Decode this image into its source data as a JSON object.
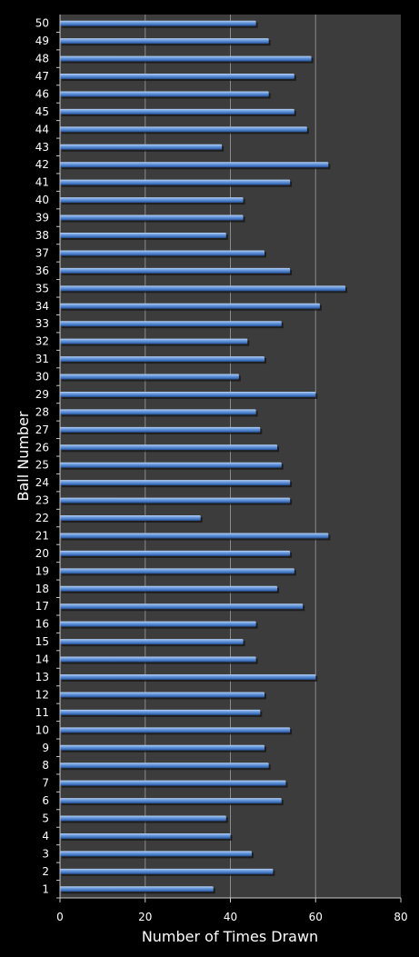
{
  "chart_data": {
    "type": "bar",
    "orientation": "horizontal",
    "xlabel": "Number of Times Drawn",
    "ylabel": "Ball Number",
    "xlim": [
      0,
      80
    ],
    "x_ticks": [
      0,
      20,
      40,
      60,
      80
    ],
    "grid": true,
    "colors": {
      "background": "#000000",
      "plot_area": "#3c3c3c",
      "bar": "#4f81c8",
      "gridline": "#8a8a8a",
      "text": "#ffffff"
    },
    "categories": [
      "1",
      "2",
      "3",
      "4",
      "5",
      "6",
      "7",
      "8",
      "9",
      "10",
      "11",
      "12",
      "13",
      "14",
      "15",
      "16",
      "17",
      "18",
      "19",
      "20",
      "21",
      "22",
      "23",
      "24",
      "25",
      "26",
      "27",
      "28",
      "29",
      "30",
      "31",
      "32",
      "33",
      "34",
      "35",
      "36",
      "37",
      "38",
      "39",
      "40",
      "41",
      "42",
      "43",
      "44",
      "45",
      "46",
      "47",
      "48",
      "49",
      "50"
    ],
    "values": [
      36,
      50,
      45,
      40,
      39,
      52,
      53,
      49,
      48,
      54,
      47,
      48,
      60,
      46,
      43,
      46,
      57,
      51,
      55,
      54,
      63,
      33,
      54,
      54,
      52,
      51,
      47,
      46,
      60,
      42,
      48,
      44,
      52,
      61,
      67,
      54,
      48,
      39,
      43,
      43,
      54,
      63,
      38,
      58,
      55,
      49,
      55,
      59,
      49,
      46
    ]
  }
}
